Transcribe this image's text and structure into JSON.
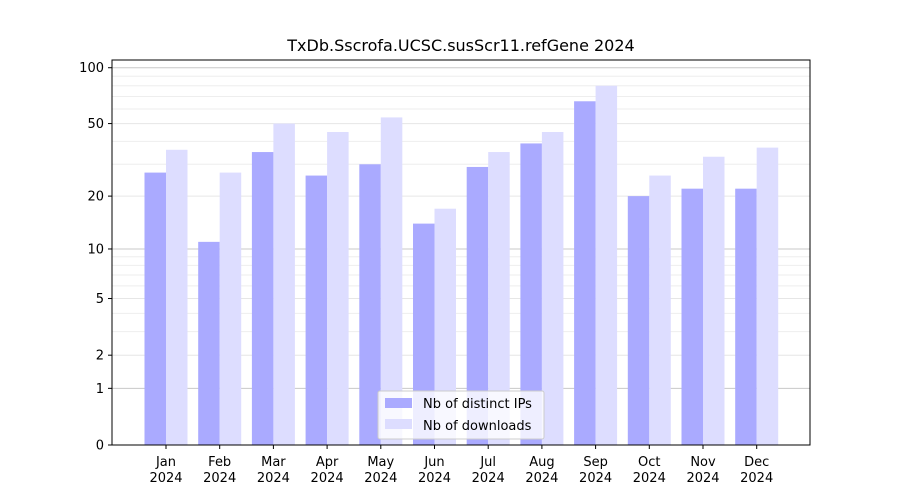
{
  "chart_data": {
    "type": "bar",
    "title": "TxDb.Sscrofa.UCSC.susScr11.refGene 2024",
    "xlabel": "",
    "ylabel": "",
    "y_scale": "log(1+y)",
    "ylim": [
      0,
      110
    ],
    "yticks": [
      0,
      1,
      2,
      5,
      10,
      20,
      50,
      100
    ],
    "grid": true,
    "legend_position": "bottom-center",
    "categories": [
      "Jan",
      "Feb",
      "Mar",
      "Apr",
      "May",
      "Jun",
      "Jul",
      "Aug",
      "Sep",
      "Oct",
      "Nov",
      "Dec"
    ],
    "category_sublabel": "2024",
    "series": [
      {
        "name": "Nb of distinct IPs",
        "color": "#aaaaff",
        "values": [
          27,
          11,
          35,
          26,
          30,
          14,
          29,
          39,
          66,
          20,
          22,
          22
        ]
      },
      {
        "name": "Nb of downloads",
        "color": "#ddddff",
        "values": [
          36,
          27,
          50,
          45,
          54,
          17,
          35,
          45,
          80,
          26,
          33,
          37
        ]
      }
    ]
  }
}
